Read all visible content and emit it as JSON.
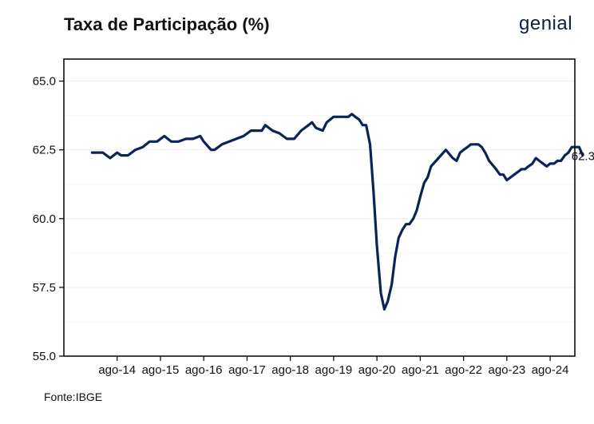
{
  "header": {
    "title": "Taxa de Participação (%)",
    "logo_text": "genial"
  },
  "footer": {
    "source": "Fonte:IBGE"
  },
  "colors": {
    "line": "#0b2457",
    "text": "#111111",
    "grid": "#ededed"
  },
  "chart_data": {
    "type": "line",
    "title": "Taxa de Participação (%)",
    "xlabel": "",
    "ylabel": "",
    "ylim": [
      55.0,
      65.8
    ],
    "xlim": [
      2013.35,
      2025.15
    ],
    "yticks": [
      "55.0",
      "57.5",
      "60.0",
      "62.5",
      "65.0"
    ],
    "xticks": [
      {
        "label": "ago-14",
        "x": 2014.58
      },
      {
        "label": "ago-15",
        "x": 2015.58
      },
      {
        "label": "ago-16",
        "x": 2016.58
      },
      {
        "label": "ago-17",
        "x": 2017.58
      },
      {
        "label": "ago-18",
        "x": 2018.58
      },
      {
        "label": "ago-19",
        "x": 2019.58
      },
      {
        "label": "ago-20",
        "x": 2020.58
      },
      {
        "label": "ago-21",
        "x": 2021.58
      },
      {
        "label": "ago-22",
        "x": 2022.58
      },
      {
        "label": "ago-23",
        "x": 2023.58
      },
      {
        "label": "ago-24",
        "x": 2024.58
      }
    ],
    "grid": true,
    "series": [
      {
        "points": [
          [
            2014.0,
            62.4
          ],
          [
            2014.25,
            62.4
          ],
          [
            2014.42,
            62.2
          ],
          [
            2014.58,
            62.4
          ],
          [
            2014.67,
            62.3
          ],
          [
            2014.83,
            62.3
          ],
          [
            2015.0,
            62.5
          ],
          [
            2015.17,
            62.6
          ],
          [
            2015.33,
            62.8
          ],
          [
            2015.5,
            62.8
          ],
          [
            2015.67,
            63.0
          ],
          [
            2015.83,
            62.8
          ],
          [
            2016.0,
            62.8
          ],
          [
            2016.17,
            62.9
          ],
          [
            2016.33,
            62.9
          ],
          [
            2016.5,
            63.0
          ],
          [
            2016.58,
            62.8
          ],
          [
            2016.75,
            62.5
          ],
          [
            2016.83,
            62.5
          ],
          [
            2017.0,
            62.7
          ],
          [
            2017.17,
            62.8
          ],
          [
            2017.33,
            62.9
          ],
          [
            2017.5,
            63.0
          ],
          [
            2017.67,
            63.2
          ],
          [
            2017.83,
            63.2
          ],
          [
            2017.92,
            63.2
          ],
          [
            2018.0,
            63.4
          ],
          [
            2018.17,
            63.2
          ],
          [
            2018.33,
            63.1
          ],
          [
            2018.5,
            62.9
          ],
          [
            2018.67,
            62.9
          ],
          [
            2018.83,
            63.2
          ],
          [
            2019.0,
            63.4
          ],
          [
            2019.08,
            63.5
          ],
          [
            2019.17,
            63.3
          ],
          [
            2019.33,
            63.2
          ],
          [
            2019.42,
            63.5
          ],
          [
            2019.58,
            63.7
          ],
          [
            2019.75,
            63.7
          ],
          [
            2019.92,
            63.7
          ],
          [
            2020.0,
            63.8
          ],
          [
            2020.08,
            63.7
          ],
          [
            2020.17,
            63.6
          ],
          [
            2020.25,
            63.4
          ],
          [
            2020.33,
            63.4
          ],
          [
            2020.42,
            62.7
          ],
          [
            2020.5,
            61.0
          ],
          [
            2020.58,
            59.0
          ],
          [
            2020.67,
            57.3
          ],
          [
            2020.75,
            56.7
          ],
          [
            2020.83,
            57.0
          ],
          [
            2020.92,
            57.6
          ],
          [
            2021.0,
            58.6
          ],
          [
            2021.08,
            59.3
          ],
          [
            2021.17,
            59.6
          ],
          [
            2021.25,
            59.8
          ],
          [
            2021.33,
            59.8
          ],
          [
            2021.42,
            60.0
          ],
          [
            2021.5,
            60.3
          ],
          [
            2021.58,
            60.8
          ],
          [
            2021.67,
            61.3
          ],
          [
            2021.75,
            61.5
          ],
          [
            2021.83,
            61.9
          ],
          [
            2022.0,
            62.2
          ],
          [
            2022.17,
            62.5
          ],
          [
            2022.33,
            62.2
          ],
          [
            2022.42,
            62.1
          ],
          [
            2022.5,
            62.4
          ],
          [
            2022.58,
            62.5
          ],
          [
            2022.67,
            62.6
          ],
          [
            2022.75,
            62.7
          ],
          [
            2022.92,
            62.7
          ],
          [
            2023.0,
            62.6
          ],
          [
            2023.08,
            62.4
          ],
          [
            2023.17,
            62.1
          ],
          [
            2023.33,
            61.8
          ],
          [
            2023.42,
            61.6
          ],
          [
            2023.5,
            61.6
          ],
          [
            2023.58,
            61.4
          ],
          [
            2023.75,
            61.6
          ],
          [
            2023.92,
            61.8
          ],
          [
            2024.0,
            61.8
          ],
          [
            2024.08,
            61.9
          ],
          [
            2024.17,
            62.0
          ],
          [
            2024.25,
            62.2
          ],
          [
            2024.33,
            62.1
          ],
          [
            2024.5,
            61.9
          ],
          [
            2024.58,
            62.0
          ],
          [
            2024.67,
            62.0
          ],
          [
            2024.75,
            62.1
          ],
          [
            2024.83,
            62.1
          ],
          [
            2024.92,
            62.3
          ],
          [
            2025.0,
            62.4
          ],
          [
            2025.08,
            62.6
          ],
          [
            2025.17,
            62.6
          ],
          [
            2025.25,
            62.6
          ],
          [
            2025.33,
            62.3
          ]
        ]
      }
    ],
    "annotations": [
      {
        "text": "62.3",
        "x": 2025.33,
        "y": 62.3
      }
    ]
  }
}
